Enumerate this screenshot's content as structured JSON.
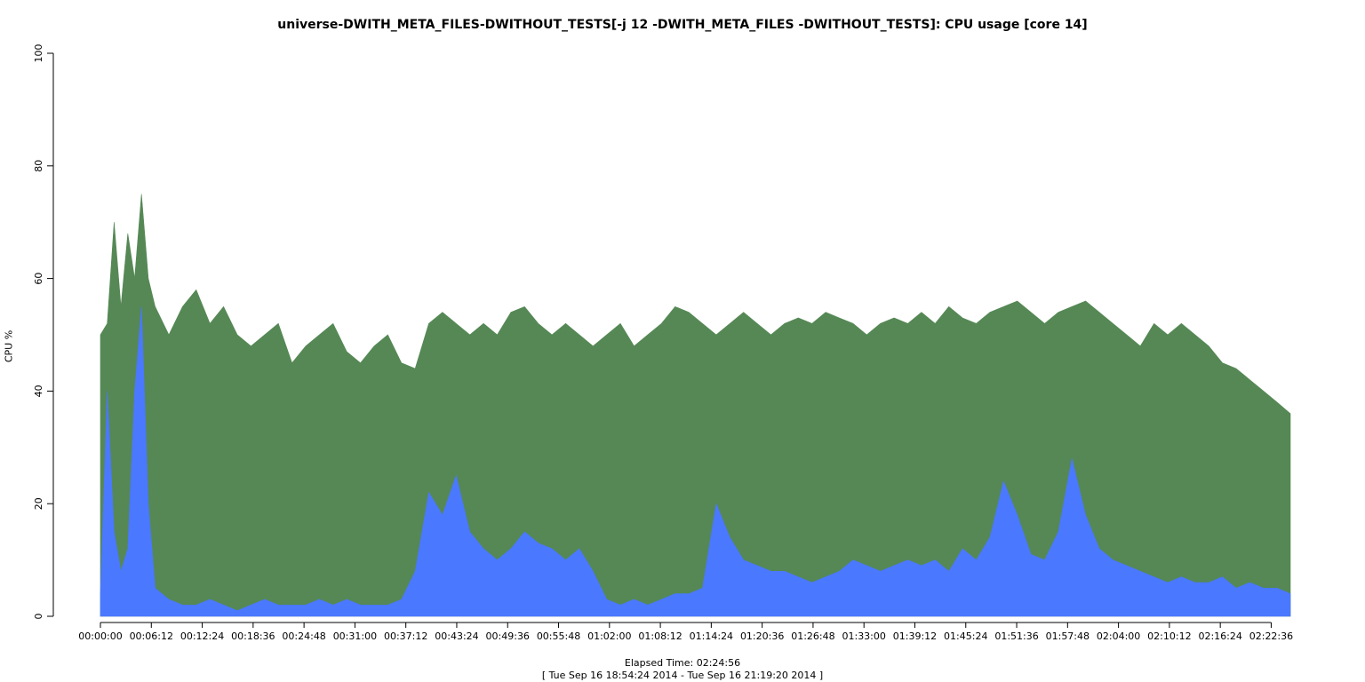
{
  "chart_data": {
    "type": "area",
    "title": "universe-DWITH_META_FILES-DWITHOUT_TESTS[-j 12 -DWITH_META_FILES -DWITHOUT_TESTS]: CPU usage [core 14]",
    "ylabel": "CPU %",
    "xlabel": "Elapsed Time: 02:24:56",
    "xlabel_range": "[ Tue Sep 16 18:54:24 2014 - Tue Sep 16 21:19:20 2014 ]",
    "ylim": [
      0,
      100
    ],
    "yticks": [
      0,
      20,
      40,
      60,
      80,
      100
    ],
    "xlim_seconds": [
      0,
      8696
    ],
    "xticks": [
      {
        "t": 0,
        "label": "00:00:00"
      },
      {
        "t": 372,
        "label": "00:06:12"
      },
      {
        "t": 744,
        "label": "00:12:24"
      },
      {
        "t": 1116,
        "label": "00:18:36"
      },
      {
        "t": 1488,
        "label": "00:24:48"
      },
      {
        "t": 1860,
        "label": "00:31:00"
      },
      {
        "t": 2232,
        "label": "00:37:12"
      },
      {
        "t": 2604,
        "label": "00:43:24"
      },
      {
        "t": 2976,
        "label": "00:49:36"
      },
      {
        "t": 3348,
        "label": "00:55:48"
      },
      {
        "t": 3720,
        "label": "01:02:00"
      },
      {
        "t": 4092,
        "label": "01:08:12"
      },
      {
        "t": 4464,
        "label": "01:14:24"
      },
      {
        "t": 4836,
        "label": "01:20:36"
      },
      {
        "t": 5208,
        "label": "01:26:48"
      },
      {
        "t": 5580,
        "label": "01:33:00"
      },
      {
        "t": 5952,
        "label": "01:39:12"
      },
      {
        "t": 6324,
        "label": "01:45:24"
      },
      {
        "t": 6696,
        "label": "01:51:36"
      },
      {
        "t": 7068,
        "label": "01:57:48"
      },
      {
        "t": 7440,
        "label": "02:04:00"
      },
      {
        "t": 7812,
        "label": "02:10:12"
      },
      {
        "t": 8184,
        "label": "02:16:24"
      },
      {
        "t": 8556,
        "label": "02:22:36"
      }
    ],
    "series": [
      {
        "color": "#558855",
        "x": [
          0,
          50,
          100,
          150,
          200,
          250,
          300,
          350,
          400,
          500,
          600,
          700,
          800,
          900,
          1000,
          1100,
          1200,
          1300,
          1400,
          1500,
          1600,
          1700,
          1800,
          1900,
          2000,
          2100,
          2200,
          2300,
          2400,
          2500,
          2600,
          2700,
          2800,
          2900,
          3000,
          3100,
          3200,
          3300,
          3400,
          3500,
          3600,
          3700,
          3800,
          3900,
          4000,
          4100,
          4200,
          4300,
          4400,
          4500,
          4600,
          4700,
          4800,
          4900,
          5000,
          5100,
          5200,
          5300,
          5400,
          5500,
          5600,
          5700,
          5800,
          5900,
          6000,
          6100,
          6200,
          6300,
          6400,
          6500,
          6600,
          6700,
          6800,
          6900,
          7000,
          7100,
          7200,
          7300,
          7400,
          7500,
          7600,
          7700,
          7800,
          7900,
          8000,
          8100,
          8200,
          8300,
          8400,
          8500,
          8600,
          8696
        ],
        "values": [
          50,
          52,
          70,
          55,
          68,
          60,
          75,
          60,
          55,
          50,
          55,
          58,
          52,
          55,
          50,
          48,
          50,
          52,
          45,
          48,
          50,
          52,
          47,
          45,
          48,
          50,
          45,
          44,
          52,
          54,
          52,
          50,
          52,
          50,
          54,
          55,
          52,
          50,
          52,
          50,
          48,
          50,
          52,
          48,
          50,
          52,
          55,
          54,
          52,
          50,
          52,
          54,
          52,
          50,
          52,
          53,
          52,
          54,
          53,
          52,
          50,
          52,
          53,
          52,
          54,
          52,
          55,
          53,
          52,
          54,
          55,
          56,
          54,
          52,
          54,
          55,
          56,
          54,
          52,
          50,
          48,
          52,
          50,
          52,
          50,
          48,
          45,
          44,
          42,
          40,
          38,
          36
        ]
      },
      {
        "color": "#4a78ff",
        "x": [
          0,
          50,
          100,
          150,
          200,
          250,
          300,
          350,
          400,
          500,
          600,
          700,
          800,
          900,
          1000,
          1100,
          1200,
          1300,
          1400,
          1500,
          1600,
          1700,
          1800,
          1900,
          2000,
          2100,
          2200,
          2300,
          2400,
          2500,
          2600,
          2700,
          2800,
          2900,
          3000,
          3100,
          3200,
          3300,
          3400,
          3500,
          3600,
          3700,
          3800,
          3900,
          4000,
          4100,
          4200,
          4300,
          4400,
          4500,
          4600,
          4700,
          4800,
          4900,
          5000,
          5100,
          5200,
          5300,
          5400,
          5500,
          5600,
          5700,
          5800,
          5900,
          6000,
          6100,
          6200,
          6300,
          6400,
          6500,
          6600,
          6700,
          6800,
          6900,
          7000,
          7100,
          7200,
          7300,
          7400,
          7500,
          7600,
          7700,
          7800,
          7900,
          8000,
          8100,
          8200,
          8300,
          8400,
          8500,
          8600,
          8696
        ],
        "values": [
          4,
          40,
          15,
          8,
          12,
          40,
          55,
          20,
          5,
          3,
          2,
          2,
          3,
          2,
          1,
          2,
          3,
          2,
          2,
          2,
          3,
          2,
          3,
          2,
          2,
          2,
          3,
          8,
          22,
          18,
          25,
          15,
          12,
          10,
          12,
          15,
          13,
          12,
          10,
          12,
          8,
          3,
          2,
          3,
          2,
          3,
          4,
          4,
          5,
          20,
          14,
          10,
          9,
          8,
          8,
          7,
          6,
          7,
          8,
          10,
          9,
          8,
          9,
          10,
          9,
          10,
          8,
          12,
          10,
          14,
          24,
          18,
          11,
          10,
          15,
          28,
          18,
          12,
          10,
          9,
          8,
          7,
          6,
          7,
          6,
          6,
          7,
          5,
          6,
          5,
          5,
          4
        ]
      }
    ]
  }
}
